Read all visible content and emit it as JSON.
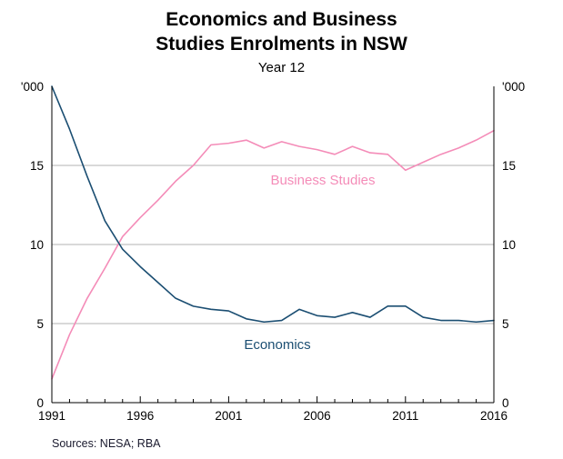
{
  "title": {
    "line1": "Economics and Business",
    "line2": "Studies Enrolments in NSW"
  },
  "subtitle": "Year 12",
  "footer": "Sources:  NESA; RBA",
  "axis": {
    "unit_label": "'000",
    "y_tick_labels": [
      "15",
      "10",
      "5",
      "0"
    ],
    "x_tick_labels": [
      "1991",
      "1996",
      "2001",
      "2006",
      "2011",
      "2016"
    ]
  },
  "series_labels": {
    "business": "Business Studies",
    "economics": "Economics"
  },
  "colors": {
    "business": "#f48cb8",
    "economics": "#1b4e72",
    "grid": "#b3b3b3",
    "axis": "#000000"
  },
  "chart_data": {
    "type": "line",
    "title": "Economics and Business Studies Enrolments in NSW",
    "subtitle": "Year 12",
    "ylabel": "'000",
    "ylim": [
      0,
      20
    ],
    "yticks": [
      0,
      5,
      10,
      15
    ],
    "xticks": [
      1991,
      1996,
      2001,
      2006,
      2011,
      2016
    ],
    "grid": true,
    "legend_position": "inline-labels",
    "x": [
      1991,
      1992,
      1993,
      1994,
      1995,
      1996,
      1997,
      1998,
      1999,
      2000,
      2001,
      2002,
      2003,
      2004,
      2005,
      2006,
      2007,
      2008,
      2009,
      2010,
      2011,
      2012,
      2013,
      2014,
      2015,
      2016
    ],
    "series": [
      {
        "name": "Business Studies",
        "color": "#f48cb8",
        "values": [
          1.5,
          4.3,
          6.6,
          8.5,
          10.5,
          11.7,
          12.8,
          14.0,
          15.0,
          16.3,
          16.4,
          16.6,
          16.1,
          16.5,
          16.2,
          16.0,
          15.7,
          16.2,
          15.8,
          15.7,
          14.7,
          15.2,
          15.7,
          16.1,
          16.6,
          17.2
        ]
      },
      {
        "name": "Economics",
        "color": "#1b4e72",
        "values": [
          20.0,
          17.3,
          14.3,
          11.5,
          9.7,
          8.6,
          7.6,
          6.6,
          6.1,
          5.9,
          5.8,
          5.3,
          5.1,
          5.2,
          5.9,
          5.5,
          5.4,
          5.7,
          5.4,
          6.1,
          6.1,
          5.4,
          5.2,
          5.2,
          5.1,
          5.2
        ]
      }
    ]
  }
}
